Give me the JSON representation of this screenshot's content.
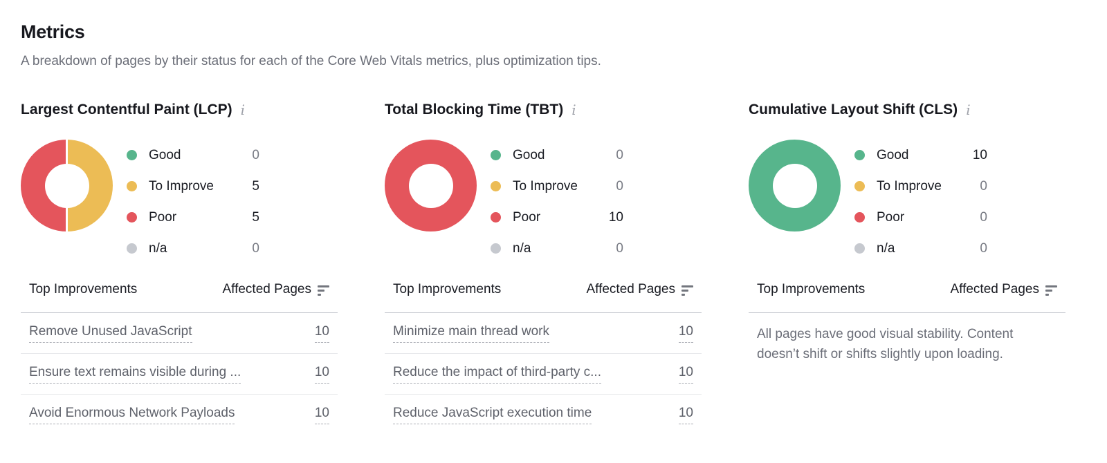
{
  "page": {
    "title": "Metrics",
    "subtitle": "A breakdown of pages by their status for each of the Core Web Vitals metrics, plus optimization tips."
  },
  "colors": {
    "good": "#57b58c",
    "to_improve": "#ecbc55",
    "poor": "#e4555c",
    "na": "#c6c9cf"
  },
  "metrics": [
    {
      "title": "Largest Contentful Paint (LCP)",
      "info_icon": "i",
      "legend": [
        {
          "label": "Good",
          "value": "0",
          "color": "#57b58c"
        },
        {
          "label": "To Improve",
          "value": "5",
          "color": "#ecbc55"
        },
        {
          "label": "Poor",
          "value": "5",
          "color": "#e4555c"
        },
        {
          "label": "n/a",
          "value": "0",
          "color": "#c6c9cf"
        }
      ],
      "donut": {
        "segments": [
          {
            "color": "#ecbc55",
            "from": 0,
            "to": 50
          },
          {
            "color": "#e4555c",
            "from": 50,
            "to": 100
          }
        ],
        "divider_gap": true
      },
      "table": {
        "col1": "Top Improvements",
        "col2": "Affected Pages",
        "rows": [
          {
            "label": "Remove Unused JavaScript",
            "value": "10"
          },
          {
            "label": "Ensure text remains visible during ...",
            "value": "10"
          },
          {
            "label": "Avoid Enormous Network Payloads",
            "value": "10"
          }
        ]
      }
    },
    {
      "title": "Total Blocking Time (TBT)",
      "info_icon": "i",
      "legend": [
        {
          "label": "Good",
          "value": "0",
          "color": "#57b58c"
        },
        {
          "label": "To Improve",
          "value": "0",
          "color": "#ecbc55"
        },
        {
          "label": "Poor",
          "value": "10",
          "color": "#e4555c"
        },
        {
          "label": "n/a",
          "value": "0",
          "color": "#c6c9cf"
        }
      ],
      "donut": {
        "segments": [
          {
            "color": "#e4555c",
            "from": 0,
            "to": 100
          }
        ],
        "divider_gap": false
      },
      "table": {
        "col1": "Top Improvements",
        "col2": "Affected Pages",
        "rows": [
          {
            "label": "Minimize main thread work",
            "value": "10"
          },
          {
            "label": "Reduce the impact of third-party c...",
            "value": "10"
          },
          {
            "label": "Reduce JavaScript execution time",
            "value": "10"
          }
        ]
      }
    },
    {
      "title": "Cumulative Layout Shift (CLS)",
      "info_icon": "i",
      "legend": [
        {
          "label": "Good",
          "value": "10",
          "color": "#57b58c"
        },
        {
          "label": "To Improve",
          "value": "0",
          "color": "#ecbc55"
        },
        {
          "label": "Poor",
          "value": "0",
          "color": "#e4555c"
        },
        {
          "label": "n/a",
          "value": "0",
          "color": "#c6c9cf"
        }
      ],
      "donut": {
        "segments": [
          {
            "color": "#57b58c",
            "from": 0,
            "to": 100
          }
        ],
        "divider_gap": false
      },
      "table": {
        "col1": "Top Improvements",
        "col2": "Affected Pages",
        "rows": []
      },
      "empty_state": "All pages have good visual stability. Content doesn’t shift or shifts slightly upon loading."
    }
  ],
  "chart_data": [
    {
      "type": "pie",
      "title": "Largest Contentful Paint (LCP)",
      "labels": [
        "Good",
        "To Improve",
        "Poor",
        "n/a"
      ],
      "values": [
        0,
        5,
        5,
        0
      ],
      "colors": [
        "#57b58c",
        "#ecbc55",
        "#e4555c",
        "#c6c9cf"
      ],
      "donut": true,
      "legend_position": "right"
    },
    {
      "type": "pie",
      "title": "Total Blocking Time (TBT)",
      "labels": [
        "Good",
        "To Improve",
        "Poor",
        "n/a"
      ],
      "values": [
        0,
        0,
        10,
        0
      ],
      "colors": [
        "#57b58c",
        "#ecbc55",
        "#e4555c",
        "#c6c9cf"
      ],
      "donut": true,
      "legend_position": "right"
    },
    {
      "type": "pie",
      "title": "Cumulative Layout Shift (CLS)",
      "labels": [
        "Good",
        "To Improve",
        "Poor",
        "n/a"
      ],
      "values": [
        10,
        0,
        0,
        0
      ],
      "colors": [
        "#57b58c",
        "#ecbc55",
        "#e4555c",
        "#c6c9cf"
      ],
      "donut": true,
      "legend_position": "right"
    }
  ]
}
